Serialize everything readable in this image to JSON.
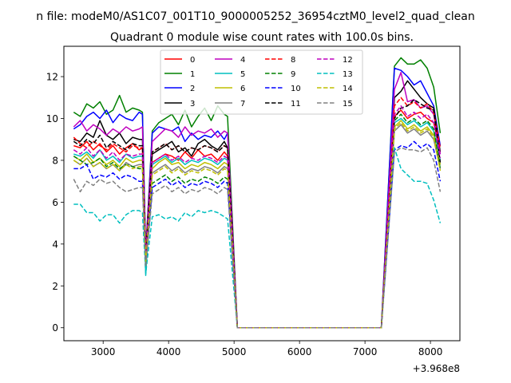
{
  "chart_data": {
    "type": "line",
    "suptitle": "n file: modeM0/AS1C07_001T10_9000005252_36954cztM0_level2_quad_clean",
    "title": "Quadrant 0 module wise count rates with 100.0s bins.",
    "xlabel": "",
    "ylabel": "",
    "x_offset_label": "+3.968e8",
    "xlim": [
      2400,
      8450
    ],
    "ylim": [
      -0.62,
      13.45
    ],
    "xticks": [
      3000,
      4000,
      5000,
      6000,
      7000,
      8000
    ],
    "xtick_labels": [
      "3000",
      "4000",
      "5000",
      "6000",
      "7000",
      "8000"
    ],
    "yticks": [
      0,
      2,
      4,
      6,
      8,
      10,
      12
    ],
    "ytick_labels": [
      "0",
      "2",
      "4",
      "6",
      "8",
      "10",
      "12"
    ],
    "grid": false,
    "legend_placement": "top-center",
    "legend_columns": 4,
    "x": [
      2550,
      2650,
      2750,
      2850,
      2950,
      3050,
      3150,
      3250,
      3350,
      3450,
      3550,
      3600,
      3650,
      3750,
      3850,
      3950,
      4050,
      4150,
      4250,
      4350,
      4450,
      4550,
      4650,
      4750,
      4850,
      4900,
      5050,
      5150,
      6000,
      7000,
      7250,
      7450,
      7550,
      7650,
      7750,
      7850,
      7950,
      8050,
      8150
    ],
    "series": [
      {
        "name": "0",
        "color": "#ff0000",
        "dash": false,
        "values": [
          8.7,
          8.6,
          8.9,
          8.5,
          8.8,
          8.4,
          8.7,
          8.3,
          8.6,
          8.8,
          8.5,
          8.6,
          3.4,
          7.9,
          8.1,
          8.3,
          8.2,
          8.0,
          8.4,
          8.1,
          8.5,
          8.2,
          8.3,
          8.0,
          8.4,
          8.2,
          0,
          0,
          0,
          0,
          0,
          10.1,
          10.4,
          10.0,
          10.2,
          10.3,
          10.0,
          9.8,
          8.4
        ]
      },
      {
        "name": "1",
        "color": "#008000",
        "dash": false,
        "values": [
          10.3,
          10.1,
          10.7,
          10.5,
          10.8,
          10.2,
          10.4,
          11.1,
          10.3,
          10.5,
          10.4,
          10.3,
          3.6,
          9.4,
          9.8,
          10.0,
          10.2,
          9.7,
          10.4,
          9.6,
          10.1,
          10.5,
          9.9,
          10.6,
          10.2,
          10.1,
          0,
          0,
          0,
          0,
          0,
          12.5,
          12.9,
          12.6,
          12.6,
          12.8,
          12.4,
          11.5,
          9.3
        ]
      },
      {
        "name": "2",
        "color": "#0000ff",
        "dash": false,
        "values": [
          9.5,
          9.7,
          10.1,
          10.3,
          10.0,
          10.4,
          9.8,
          10.2,
          10.0,
          9.9,
          10.3,
          10.2,
          3.5,
          9.3,
          9.6,
          9.5,
          9.4,
          9.6,
          8.9,
          9.3,
          9.0,
          9.2,
          9.1,
          9.4,
          9.0,
          9.3,
          0,
          0,
          0,
          0,
          0,
          12.4,
          12.3,
          12.0,
          11.6,
          11.8,
          11.2,
          10.6,
          8.7
        ]
      },
      {
        "name": "3",
        "color": "#000000",
        "dash": false,
        "values": [
          9.0,
          8.9,
          9.3,
          9.1,
          9.9,
          9.2,
          9.0,
          9.3,
          8.8,
          9.1,
          9.0,
          9.0,
          3.3,
          8.3,
          8.5,
          8.7,
          8.9,
          8.4,
          8.6,
          8.2,
          8.8,
          9.0,
          8.7,
          8.5,
          8.9,
          8.6,
          0,
          0,
          0,
          0,
          0,
          11.0,
          11.3,
          11.8,
          11.4,
          11.0,
          10.7,
          10.5,
          8.4
        ]
      },
      {
        "name": "4",
        "color": "#bf00bf",
        "dash": false,
        "values": [
          9.6,
          9.9,
          9.4,
          9.7,
          9.5,
          9.2,
          9.5,
          9.3,
          9.6,
          9.4,
          9.5,
          9.6,
          3.5,
          8.9,
          9.2,
          9.5,
          9.4,
          9.1,
          9.6,
          9.2,
          9.4,
          9.3,
          9.5,
          9.1,
          9.4,
          9.3,
          0,
          0,
          0,
          0,
          0,
          11.4,
          12.2,
          10.8,
          10.9,
          10.5,
          10.6,
          10.2,
          8.3
        ]
      },
      {
        "name": "5",
        "color": "#00bfbf",
        "dash": false,
        "values": [
          8.3,
          8.2,
          8.4,
          8.1,
          8.5,
          8.0,
          8.2,
          7.9,
          8.3,
          8.1,
          8.2,
          8.2,
          2.5,
          7.8,
          8.0,
          8.2,
          7.9,
          8.1,
          7.8,
          8.0,
          7.9,
          8.1,
          8.0,
          7.8,
          8.1,
          8.0,
          0,
          0,
          0,
          0,
          0,
          9.8,
          10.0,
          9.7,
          9.9,
          9.6,
          9.8,
          9.4,
          8.0
        ]
      },
      {
        "name": "6",
        "color": "#bfbf00",
        "dash": false,
        "values": [
          8.2,
          8.0,
          8.3,
          7.9,
          8.1,
          7.8,
          8.0,
          7.7,
          8.1,
          7.9,
          8.0,
          8.0,
          3.3,
          7.6,
          7.9,
          8.1,
          7.8,
          7.9,
          7.6,
          7.8,
          7.7,
          7.9,
          7.8,
          7.6,
          7.9,
          7.8,
          0,
          0,
          0,
          0,
          0,
          9.6,
          9.9,
          9.5,
          9.7,
          9.4,
          9.6,
          9.2,
          7.8
        ]
      },
      {
        "name": "7",
        "color": "#808080",
        "dash": false,
        "values": [
          8.0,
          7.8,
          8.1,
          7.7,
          7.9,
          7.6,
          7.8,
          7.5,
          7.9,
          7.7,
          7.8,
          7.8,
          3.2,
          7.4,
          7.6,
          7.8,
          7.5,
          7.7,
          7.4,
          7.6,
          7.5,
          7.7,
          7.6,
          7.4,
          7.7,
          7.6,
          0,
          0,
          0,
          0,
          0,
          9.4,
          9.7,
          9.3,
          9.5,
          9.2,
          9.4,
          9.0,
          7.6
        ]
      },
      {
        "name": "8",
        "color": "#ff0000",
        "dash": true,
        "values": [
          9.1,
          8.8,
          8.6,
          8.9,
          8.7,
          8.5,
          8.8,
          8.6,
          8.4,
          8.7,
          8.6,
          8.6,
          3.6,
          8.4,
          8.6,
          8.8,
          8.5,
          8.7,
          8.4,
          8.6,
          8.5,
          8.7,
          8.6,
          8.4,
          8.7,
          8.6,
          0,
          0,
          0,
          0,
          0,
          10.6,
          11.0,
          10.6,
          10.8,
          10.5,
          10.7,
          10.3,
          8.6
        ]
      },
      {
        "name": "9",
        "color": "#008000",
        "dash": true,
        "values": [
          8.2,
          8.0,
          7.8,
          7.9,
          8.1,
          7.7,
          7.9,
          7.6,
          7.8,
          7.7,
          7.6,
          7.6,
          3.4,
          6.9,
          7.1,
          7.3,
          7.0,
          7.2,
          6.9,
          7.1,
          7.0,
          7.2,
          7.1,
          6.9,
          7.2,
          7.1,
          0,
          0,
          0,
          0,
          0,
          9.9,
          10.2,
          9.8,
          10.0,
          9.7,
          9.9,
          9.5,
          7.6
        ]
      },
      {
        "name": "10",
        "color": "#0000ff",
        "dash": true,
        "values": [
          7.6,
          7.6,
          7.8,
          7.1,
          7.3,
          7.2,
          7.4,
          7.1,
          7.3,
          7.2,
          7.0,
          7.0,
          3.0,
          6.7,
          6.9,
          7.1,
          6.8,
          7.0,
          6.7,
          6.9,
          6.8,
          7.0,
          6.9,
          6.7,
          7.0,
          6.9,
          0,
          0,
          0,
          0,
          0,
          8.5,
          8.7,
          8.6,
          8.9,
          8.6,
          8.8,
          8.5,
          7.0
        ]
      },
      {
        "name": "11",
        "color": "#000000",
        "dash": true,
        "values": [
          8.9,
          8.7,
          9.0,
          8.8,
          9.2,
          8.6,
          8.9,
          8.7,
          8.5,
          8.8,
          8.7,
          8.7,
          3.4,
          8.4,
          8.6,
          8.8,
          8.5,
          8.7,
          8.4,
          8.6,
          8.5,
          8.7,
          8.6,
          8.4,
          8.7,
          8.6,
          0,
          0,
          0,
          0,
          0,
          10.0,
          10.5,
          10.6,
          10.9,
          10.7,
          10.5,
          10.4,
          7.9
        ]
      },
      {
        "name": "12",
        "color": "#bf00bf",
        "dash": true,
        "values": [
          8.5,
          8.3,
          8.6,
          8.2,
          8.5,
          8.1,
          8.4,
          8.0,
          8.3,
          8.2,
          8.3,
          8.3,
          3.4,
          7.9,
          8.1,
          8.3,
          8.0,
          8.2,
          7.9,
          8.1,
          8.0,
          8.2,
          8.1,
          7.9,
          8.2,
          8.1,
          0,
          0,
          0,
          0,
          0,
          10.2,
          10.6,
          10.1,
          10.3,
          10.0,
          10.2,
          9.8,
          8.1
        ]
      },
      {
        "name": "13",
        "color": "#00bfbf",
        "dash": true,
        "values": [
          5.9,
          5.9,
          5.5,
          5.5,
          5.1,
          5.4,
          5.4,
          5.0,
          5.4,
          5.6,
          5.6,
          5.5,
          2.6,
          5.3,
          5.4,
          5.2,
          5.3,
          5.1,
          5.5,
          5.3,
          5.6,
          5.5,
          5.6,
          5.5,
          5.3,
          5.2,
          0,
          0,
          0,
          0,
          0,
          8.6,
          7.6,
          7.3,
          7.0,
          7.0,
          6.9,
          6.1,
          5.0
        ]
      },
      {
        "name": "14",
        "color": "#bfbf00",
        "dash": true,
        "values": [
          8.0,
          7.8,
          8.1,
          7.7,
          7.9,
          7.6,
          7.8,
          7.5,
          7.8,
          7.6,
          7.7,
          7.7,
          3.1,
          7.3,
          7.5,
          7.7,
          7.4,
          7.6,
          7.3,
          7.5,
          7.4,
          7.6,
          7.5,
          7.3,
          7.6,
          7.5,
          0,
          0,
          0,
          0,
          0,
          9.5,
          9.8,
          9.4,
          9.6,
          9.3,
          9.5,
          9.1,
          7.5
        ]
      },
      {
        "name": "15",
        "color": "#808080",
        "dash": true,
        "values": [
          7.1,
          6.5,
          7.0,
          6.8,
          7.1,
          6.9,
          7.0,
          6.7,
          6.5,
          6.6,
          6.7,
          6.7,
          2.9,
          6.4,
          6.6,
          6.8,
          6.5,
          6.7,
          6.4,
          6.6,
          6.5,
          6.7,
          6.6,
          6.4,
          6.7,
          6.6,
          0,
          0,
          0,
          0,
          0,
          8.4,
          8.6,
          8.5,
          8.5,
          8.4,
          8.6,
          8.0,
          6.5
        ]
      }
    ]
  }
}
